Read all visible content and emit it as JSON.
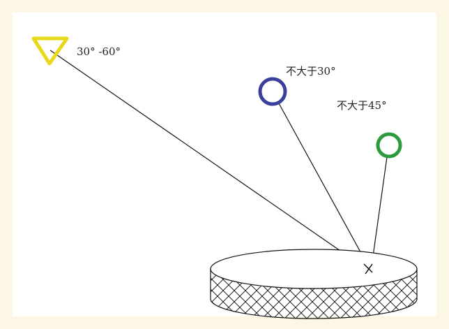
{
  "labels": {
    "triangle": "30° -60°",
    "blue_circle": "不大于30°",
    "green_circle": "不大于45°"
  }
}
